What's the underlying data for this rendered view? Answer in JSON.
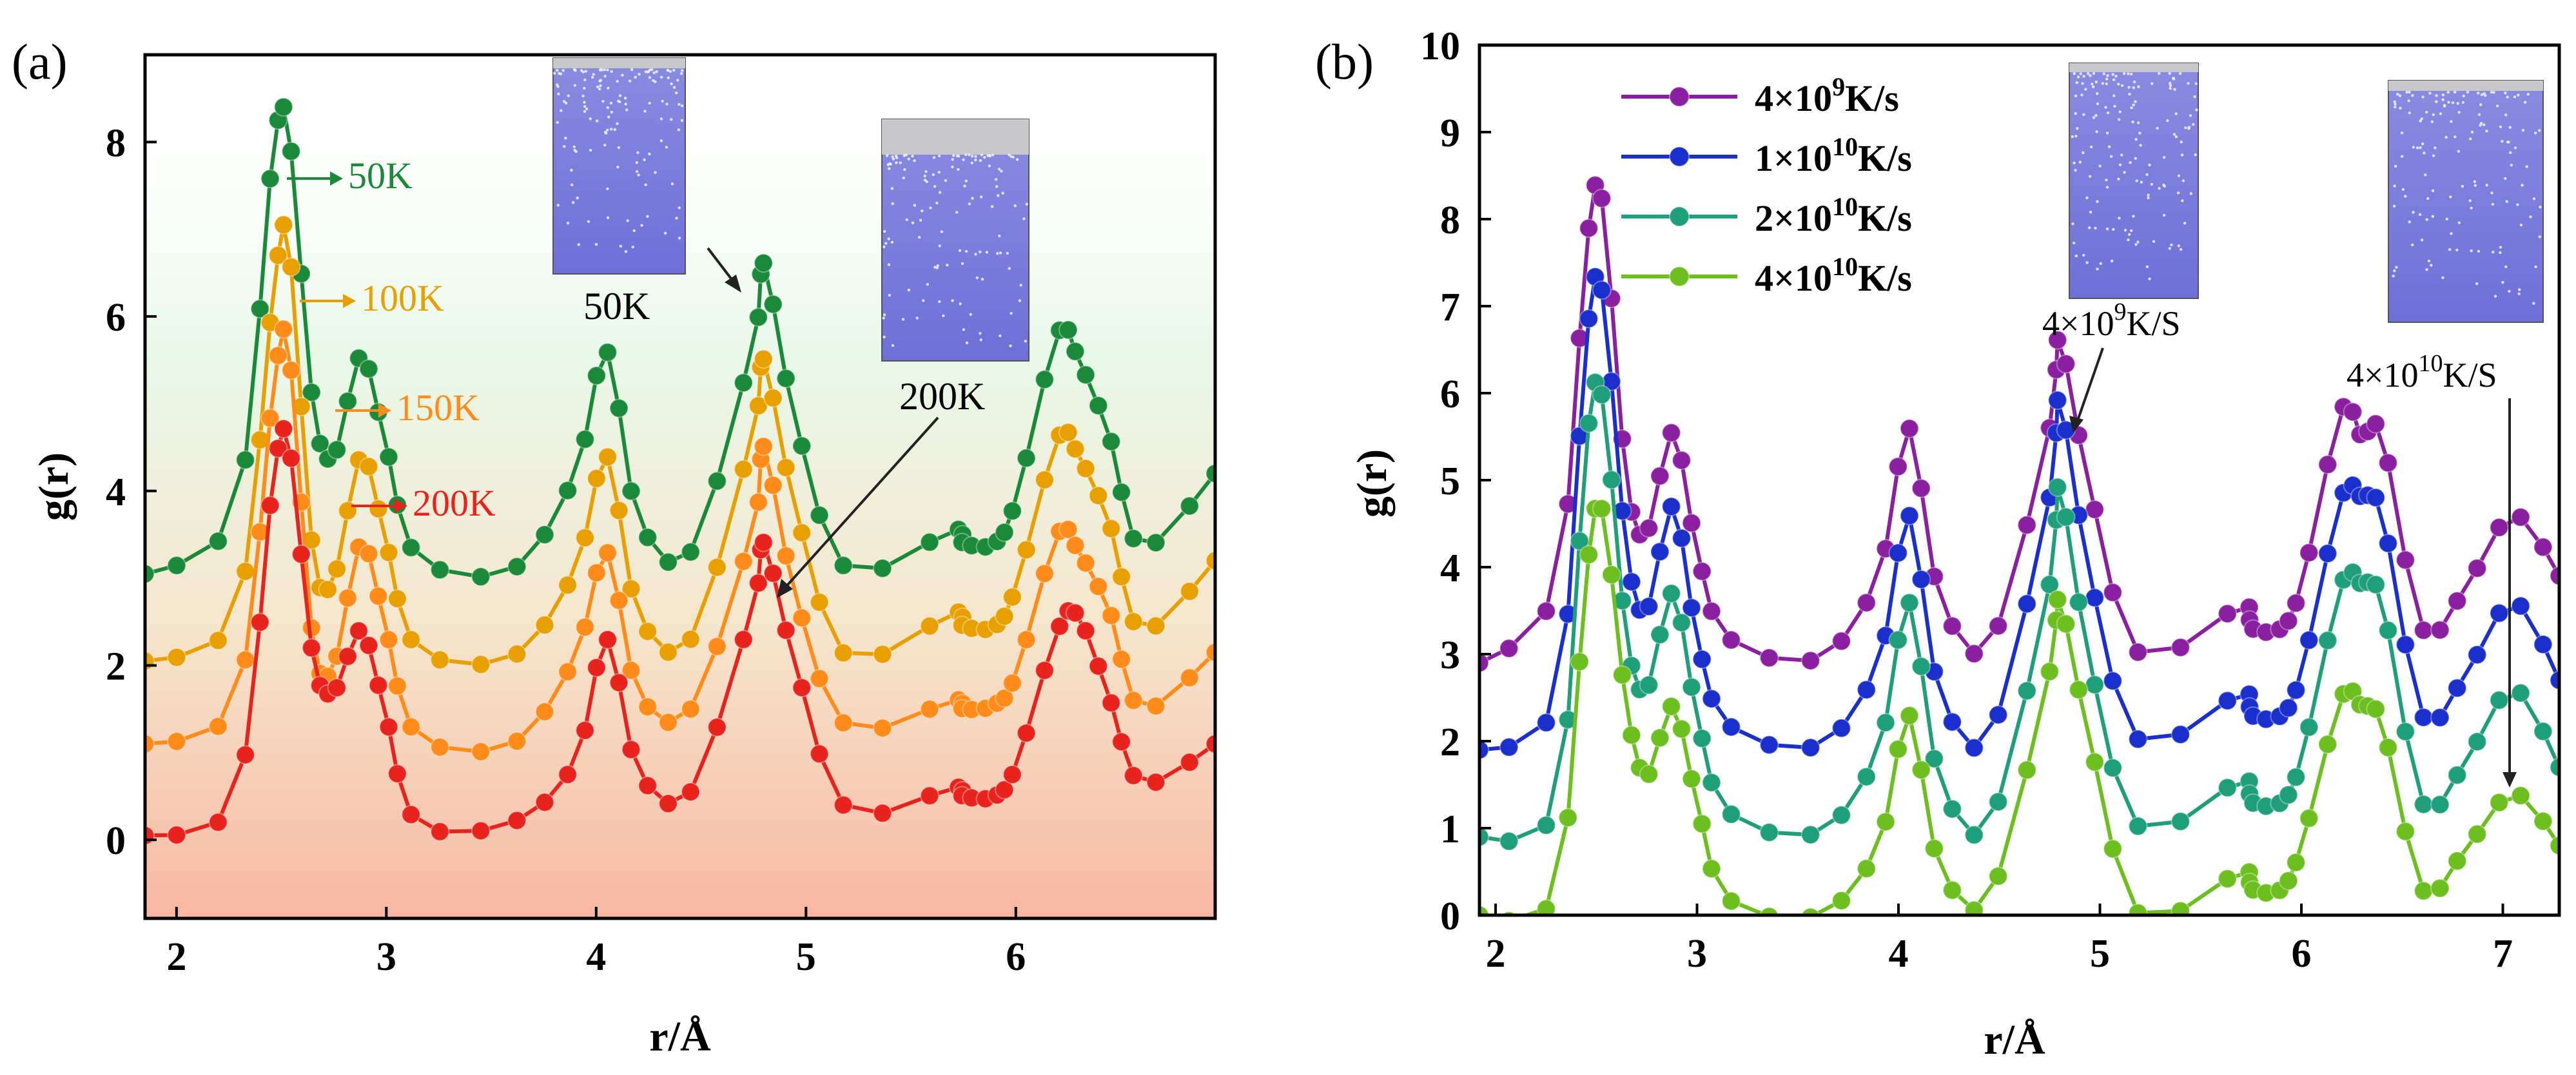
{
  "chart_data": [
    {
      "panel_label": "(a)",
      "type": "line",
      "title": "",
      "xlabel": "r/Å",
      "ylabel": "g(r)",
      "xlim": [
        1.85,
        6.95
      ],
      "ylim": [
        -0.9,
        9.0
      ],
      "xticks": [
        2,
        3,
        4,
        5,
        6
      ],
      "yticks": [
        0,
        2,
        4,
        6,
        8
      ],
      "grid": false,
      "x": [
        1.85,
        2.28,
        2.45,
        2.53,
        2.65,
        2.75,
        2.88,
        3.0,
        3.15,
        3.6,
        3.9,
        4.05,
        4.2,
        4.45,
        4.75,
        4.8,
        4.95,
        5.2,
        5.7,
        5.75,
        5.9,
        6.0,
        6.2,
        6.3,
        6.45,
        6.6,
        6.95
      ],
      "series": [
        {
          "name": "50K",
          "color": "#1a8a3a",
          "offset": 3.0,
          "values": [
            3.05,
            3.8,
            7.65,
            8.2,
            5.0,
            4.4,
            5.55,
            4.5,
            3.25,
            3.1,
            4.2,
            5.6,
            3.7,
            3.3,
            5.7,
            6.6,
            4.8,
            3.1,
            3.55,
            3.4,
            3.4,
            3.9,
            5.8,
            5.5,
            4.6,
            3.35,
            4.2
          ]
        },
        {
          "name": "100K",
          "color": "#e8a000",
          "offset": 2.0,
          "values": [
            2.05,
            2.6,
            6.0,
            6.9,
            3.3,
            3.0,
            4.4,
            3.4,
            2.2,
            2.1,
            3.1,
            4.4,
            2.6,
            2.3,
            4.7,
            5.5,
            3.8,
            2.1,
            2.6,
            2.45,
            2.45,
            2.9,
            4.6,
            4.4,
            3.6,
            2.4,
            3.2
          ]
        },
        {
          "name": "150K",
          "color": "#ff8c1a",
          "offset": 1.0,
          "values": [
            1.1,
            1.6,
            4.9,
            5.7,
            2.3,
            2.0,
            3.4,
            2.4,
            1.2,
            1.1,
            2.1,
            3.3,
            1.7,
            1.5,
            3.6,
            4.5,
            2.8,
            1.3,
            1.6,
            1.5,
            1.55,
            1.9,
            3.5,
            3.3,
            2.6,
            1.5,
            2.15
          ]
        },
        {
          "name": "200K",
          "color": "#e8231e",
          "offset": 0.0,
          "values": [
            0.05,
            0.5,
            3.9,
            4.6,
            2.1,
            1.7,
            2.4,
            1.4,
            0.2,
            0.2,
            0.9,
            2.3,
            0.8,
            0.55,
            2.7,
            3.4,
            2.0,
            0.35,
            0.6,
            0.5,
            0.5,
            0.85,
            2.4,
            2.55,
            1.6,
            0.65,
            1.1
          ]
        }
      ],
      "legend": [
        {
          "label": "50K",
          "color": "#1a8a3a"
        },
        {
          "label": "100K",
          "color": "#e8a000"
        },
        {
          "label": "150K",
          "color": "#ff8c1a"
        },
        {
          "label": "200K",
          "color": "#e8231e"
        }
      ],
      "annotations": [
        "50K",
        "200K"
      ]
    },
    {
      "panel_label": "(b)",
      "type": "line",
      "title": "",
      "xlabel": "r/Å",
      "ylabel": "g(r)",
      "xlim": [
        1.92,
        7.28
      ],
      "ylim": [
        0,
        10
      ],
      "xticks": [
        2,
        3,
        4,
        5,
        6,
        7
      ],
      "yticks": [
        0,
        1,
        2,
        3,
        4,
        5,
        6,
        7,
        8,
        9,
        10
      ],
      "grid": false,
      "x": [
        1.92,
        2.3,
        2.45,
        2.53,
        2.65,
        2.75,
        2.88,
        3.0,
        3.15,
        3.6,
        3.9,
        4.05,
        4.2,
        4.45,
        4.75,
        4.8,
        4.95,
        5.2,
        5.7,
        5.75,
        5.9,
        6.0,
        6.2,
        6.3,
        6.4,
        6.6,
        6.8,
        7.05,
        7.28
      ],
      "series": [
        {
          "name": "4×10⁹K/s",
          "color": "#8a1fa0",
          "values": [
            2.9,
            3.8,
            7.65,
            8.2,
            5.0,
            4.4,
            5.55,
            4.2,
            3.2,
            2.95,
            3.9,
            5.6,
            3.7,
            3.1,
            5.6,
            6.6,
            4.9,
            3.0,
            3.55,
            3.3,
            3.3,
            3.8,
            5.8,
            5.5,
            5.5,
            3.3,
            3.7,
            4.6,
            3.9
          ]
        },
        {
          "name": "1×10¹⁰K/s",
          "color": "#1a2fcc",
          "values": [
            1.9,
            2.5,
            6.6,
            7.15,
            4.2,
            3.5,
            4.7,
            3.2,
            2.2,
            1.95,
            2.9,
            4.6,
            2.6,
            2.05,
            4.8,
            5.9,
            3.9,
            2.0,
            2.55,
            2.3,
            2.3,
            2.8,
            4.8,
            4.8,
            4.6,
            2.3,
            2.7,
            3.6,
            2.7
          ]
        },
        {
          "name": "2×10¹⁰K/s",
          "color": "#1f9e7a",
          "values": [
            0.9,
            1.3,
            5.4,
            5.95,
            3.2,
            2.6,
            3.7,
            2.3,
            1.2,
            0.95,
            1.9,
            3.6,
            1.6,
            1.05,
            3.8,
            4.9,
            2.9,
            1.0,
            1.55,
            1.3,
            1.3,
            1.8,
            3.8,
            3.8,
            3.6,
            1.3,
            1.7,
            2.6,
            1.7
          ]
        },
        {
          "name": "4×10¹⁰K/s",
          "color": "#6cbf1f",
          "values": [
            0.0,
            0.3,
            3.9,
            4.65,
            2.4,
            1.6,
            2.4,
            1.3,
            0.2,
            0.0,
            0.8,
            2.3,
            0.6,
            0.2,
            2.8,
            3.6,
            2.0,
            0.0,
            0.5,
            0.3,
            0.3,
            0.8,
            2.5,
            2.4,
            2.2,
            0.3,
            0.7,
            1.4,
            0.8
          ]
        }
      ],
      "legend": [
        {
          "label_base": "4×10",
          "exp": "9",
          "unit": "K/s",
          "color": "#8a1fa0"
        },
        {
          "label_base": "1×10",
          "exp": "10",
          "unit": "K/s",
          "color": "#1a2fcc"
        },
        {
          "label_base": "2×10",
          "exp": "10",
          "unit": "K/s",
          "color": "#1f9e7a"
        },
        {
          "label_base": "4×10",
          "exp": "10",
          "unit": "K/s",
          "color": "#6cbf1f"
        }
      ],
      "annotations": [
        {
          "base": "4×10",
          "exp": "9",
          "unit": "K/S"
        },
        {
          "base": "4×10",
          "exp": "10",
          "unit": "K/S"
        }
      ]
    }
  ]
}
